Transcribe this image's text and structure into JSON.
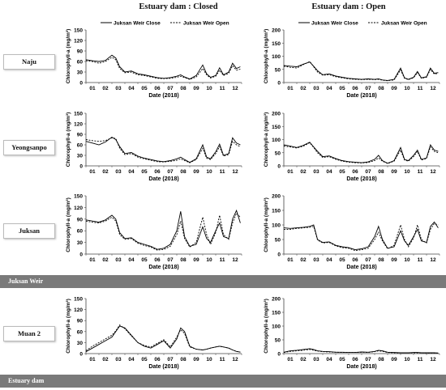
{
  "columns": {
    "closed": "Estuary dam : Closed",
    "open": "Estuary dam : Open"
  },
  "rows": {
    "naju": "Naju",
    "yeongsanpo": "Yeongsanpo",
    "juksan": "Juksan",
    "muan": "Muan 2"
  },
  "bands": {
    "juksan_weir": "Juksan Weir",
    "estuary_dam": "Estuary dam"
  },
  "colors": {
    "close_line": "#000000",
    "open_line": "#000000",
    "band": "#7a7a7a"
  },
  "chart_data": [
    {
      "id": "naju-closed",
      "type": "line",
      "xlabel": "Date (2018)",
      "ylabel": "Chlorophyll-a (mg/m³)",
      "ylim": [
        0,
        150
      ],
      "yticks": [
        0,
        30,
        60,
        90,
        120,
        150
      ],
      "xticks": [
        "01",
        "02",
        "03",
        "04",
        "05",
        "06",
        "07",
        "08",
        "09",
        "10",
        "11",
        "12"
      ],
      "legend": [
        "Juksan Weir Close",
        "Juksan Weir Open"
      ],
      "x": [
        1,
        1.5,
        2,
        2.5,
        3,
        3.3,
        3.6,
        4,
        4.5,
        5,
        5.5,
        6,
        6.5,
        7,
        7.5,
        8,
        8.3,
        8.6,
        9,
        9.5,
        10,
        10.3,
        10.6,
        11,
        11.3,
        11.6,
        12,
        12.3,
        12.6,
        12.9
      ],
      "series": [
        {
          "name": "Juksan Weir Close",
          "values": [
            65,
            62,
            60,
            63,
            78,
            70,
            45,
            30,
            33,
            25,
            22,
            18,
            14,
            12,
            14,
            18,
            22,
            16,
            10,
            20,
            50,
            25,
            15,
            20,
            42,
            22,
            30,
            55,
            40,
            45
          ]
        },
        {
          "name": "Juksan Weir Open",
          "values": [
            62,
            60,
            55,
            60,
            72,
            65,
            40,
            28,
            30,
            22,
            20,
            16,
            12,
            11,
            12,
            15,
            18,
            14,
            9,
            16,
            40,
            22,
            13,
            18,
            35,
            20,
            26,
            48,
            35,
            38
          ]
        }
      ]
    },
    {
      "id": "naju-open",
      "type": "line",
      "xlabel": "Date (2018)",
      "ylabel": "Chlorophyll-a (mg/m³)",
      "ylim": [
        0,
        200
      ],
      "yticks": [
        0,
        50,
        100,
        150,
        200
      ],
      "xticks": [
        "01",
        "02",
        "03",
        "04",
        "05",
        "06",
        "07",
        "08",
        "09",
        "10",
        "11",
        "12"
      ],
      "legend": [
        "Juksan Weir Close",
        "Juksan Weir Open"
      ],
      "x": [
        1,
        1.5,
        2,
        2.5,
        3,
        3.3,
        3.6,
        4,
        4.5,
        5,
        5.5,
        6,
        6.5,
        7,
        7.5,
        8,
        8.3,
        8.6,
        9,
        9.5,
        10,
        10.3,
        10.6,
        11,
        11.3,
        11.6,
        12,
        12.3,
        12.6,
        12.9
      ],
      "series": [
        {
          "name": "Juksan Weir Close",
          "values": [
            65,
            62,
            60,
            70,
            78,
            62,
            45,
            30,
            33,
            25,
            20,
            16,
            14,
            12,
            14,
            12,
            14,
            10,
            8,
            12,
            55,
            18,
            12,
            20,
            42,
            18,
            22,
            55,
            35,
            38
          ]
        },
        {
          "name": "Juksan Weir Open",
          "values": [
            62,
            58,
            55,
            68,
            80,
            60,
            40,
            28,
            30,
            22,
            18,
            14,
            12,
            11,
            12,
            11,
            12,
            9,
            7,
            10,
            48,
            16,
            11,
            18,
            38,
            16,
            20,
            50,
            32,
            35
          ]
        }
      ]
    },
    {
      "id": "yeongsanpo-closed",
      "type": "line",
      "xlabel": "Date (2018)",
      "ylabel": "Chlorophyll-a (mg/m³)",
      "ylim": [
        0,
        150
      ],
      "yticks": [
        0,
        30,
        60,
        90,
        120,
        150
      ],
      "xticks": [
        "01",
        "02",
        "03",
        "04",
        "05",
        "06",
        "07",
        "08",
        "09",
        "10",
        "11",
        "12"
      ],
      "legend": [
        "Juksan Weir Close",
        "Juksan Weir Open"
      ],
      "x": [
        1,
        1.5,
        2,
        2.5,
        3,
        3.3,
        3.6,
        4,
        4.5,
        5,
        5.5,
        6,
        6.5,
        7,
        7.5,
        8,
        8.3,
        8.6,
        9,
        9.5,
        10,
        10.3,
        10.6,
        11,
        11.3,
        11.6,
        12,
        12.3,
        12.6,
        12.9
      ],
      "series": [
        {
          "name": "Juksan Weir Close",
          "values": [
            70,
            65,
            60,
            68,
            82,
            75,
            55,
            35,
            38,
            28,
            22,
            18,
            14,
            12,
            15,
            20,
            25,
            18,
            10,
            20,
            60,
            25,
            20,
            40,
            62,
            30,
            35,
            80,
            65,
            60
          ]
        },
        {
          "name": "Juksan Weir Open",
          "values": [
            75,
            72,
            70,
            72,
            80,
            78,
            50,
            32,
            35,
            25,
            20,
            16,
            12,
            11,
            13,
            16,
            20,
            15,
            9,
            18,
            50,
            22,
            18,
            35,
            55,
            28,
            32,
            70,
            60,
            55
          ]
        }
      ]
    },
    {
      "id": "yeongsanpo-open",
      "type": "line",
      "xlabel": "Date (2018)",
      "ylabel": "Chlorophyll-a (mg/m³)",
      "ylim": [
        0,
        200
      ],
      "yticks": [
        0,
        50,
        100,
        150,
        200
      ],
      "xticks": [
        "01",
        "02",
        "03",
        "04",
        "05",
        "06",
        "07",
        "08",
        "09",
        "10",
        "11",
        "12"
      ],
      "legend": [
        "Juksan Weir Close",
        "Juksan Weir Open"
      ],
      "x": [
        1,
        1.5,
        2,
        2.5,
        3,
        3.3,
        3.6,
        4,
        4.5,
        5,
        5.5,
        6,
        6.5,
        7,
        7.5,
        8,
        8.3,
        8.6,
        9,
        9.5,
        10,
        10.3,
        10.6,
        11,
        11.3,
        11.6,
        12,
        12.3,
        12.6,
        12.9
      ],
      "series": [
        {
          "name": "Juksan Weir Close",
          "values": [
            80,
            75,
            70,
            78,
            90,
            72,
            55,
            35,
            38,
            28,
            20,
            16,
            14,
            12,
            15,
            25,
            40,
            20,
            10,
            20,
            70,
            25,
            20,
            40,
            60,
            25,
            30,
            80,
            60,
            55
          ]
        },
        {
          "name": "Juksan Weir Open",
          "values": [
            75,
            72,
            68,
            75,
            88,
            70,
            50,
            32,
            35,
            25,
            18,
            14,
            12,
            11,
            13,
            20,
            30,
            18,
            9,
            18,
            60,
            22,
            18,
            35,
            55,
            22,
            28,
            72,
            55,
            50
          ]
        }
      ]
    },
    {
      "id": "juksan-closed",
      "type": "line",
      "xlabel": "Date (2018)",
      "ylabel": "Chlorophyll-a (mg/m³)",
      "ylim": [
        0,
        150
      ],
      "yticks": [
        0,
        30,
        60,
        90,
        120,
        150
      ],
      "xticks": [
        "01",
        "02",
        "03",
        "04",
        "05",
        "06",
        "07",
        "08",
        "09",
        "10",
        "11",
        "12"
      ],
      "legend": [
        "Juksan Weir Close",
        "Juksan Weir Open"
      ],
      "x": [
        1,
        1.5,
        2,
        2.5,
        3,
        3.3,
        3.6,
        4,
        4.5,
        5,
        5.5,
        6,
        6.5,
        7,
        7.5,
        8,
        8.3,
        8.6,
        9,
        9.5,
        10,
        10.3,
        10.6,
        11,
        11.3,
        11.6,
        12,
        12.3,
        12.6,
        12.9
      ],
      "series": [
        {
          "name": "Juksan Weir Close",
          "values": [
            88,
            85,
            82,
            88,
            100,
            90,
            55,
            40,
            42,
            30,
            25,
            20,
            12,
            15,
            25,
            60,
            110,
            45,
            20,
            25,
            70,
            40,
            30,
            60,
            80,
            45,
            40,
            90,
            112,
            80
          ]
        },
        {
          "name": "Juksan Weir Open",
          "values": [
            85,
            82,
            80,
            85,
            95,
            85,
            50,
            38,
            40,
            28,
            22,
            18,
            10,
            12,
            20,
            50,
            85,
            40,
            18,
            30,
            95,
            50,
            25,
            55,
            100,
            50,
            38,
            80,
            105,
            95
          ]
        }
      ]
    },
    {
      "id": "juksan-open",
      "type": "line",
      "xlabel": "Date (2018)",
      "ylabel": "Chlorophyll-a (mg/m³)",
      "ylim": [
        0,
        200
      ],
      "yticks": [
        0,
        50,
        100,
        150,
        200
      ],
      "xticks": [
        "01",
        "02",
        "03",
        "04",
        "05",
        "06",
        "07",
        "08",
        "09",
        "10",
        "11",
        "12"
      ],
      "legend": [
        "Juksan Weir Close",
        "Juksan Weir Open"
      ],
      "x": [
        1,
        1.5,
        2,
        2.5,
        3,
        3.3,
        3.6,
        4,
        4.5,
        5,
        5.5,
        6,
        6.5,
        7,
        7.5,
        8,
        8.3,
        8.6,
        9,
        9.5,
        10,
        10.3,
        10.6,
        11,
        11.3,
        11.6,
        12,
        12.3,
        12.6,
        12.9
      ],
      "series": [
        {
          "name": "Juksan Weir Close",
          "values": [
            90,
            88,
            90,
            92,
            95,
            100,
            50,
            40,
            42,
            30,
            25,
            22,
            15,
            18,
            25,
            60,
            95,
            50,
            20,
            25,
            80,
            45,
            30,
            60,
            85,
            45,
            40,
            95,
            110,
            90
          ]
        },
        {
          "name": "Juksan Weir Open",
          "values": [
            85,
            85,
            88,
            90,
            92,
            95,
            48,
            38,
            40,
            28,
            22,
            20,
            12,
            15,
            20,
            50,
            75,
            45,
            18,
            30,
            100,
            50,
            25,
            55,
            100,
            50,
            38,
            85,
            105,
            100
          ]
        }
      ]
    },
    {
      "id": "muan-closed",
      "type": "line",
      "xlabel": "Date (2018)",
      "ylabel": "Chlorophyll-a (mg/m³)",
      "ylim": [
        0,
        150
      ],
      "yticks": [
        0,
        30,
        60,
        90,
        120,
        150
      ],
      "xticks": [
        "01",
        "02",
        "03",
        "04",
        "05",
        "06",
        "07",
        "08",
        "09",
        "10",
        "11",
        "12"
      ],
      "legend": [
        "Juksan Weir Close",
        "Juksan Weir Open"
      ],
      "x": [
        1,
        1.5,
        2,
        2.5,
        3,
        3.3,
        3.6,
        4,
        4.5,
        5,
        5.5,
        6,
        6.5,
        7,
        7.5,
        8,
        8.3,
        8.6,
        9,
        9.5,
        10,
        10.3,
        10.6,
        11,
        11.3,
        11.6,
        12,
        12.3,
        12.6,
        12.9
      ],
      "series": [
        {
          "name": "Juksan Weir Close",
          "values": [
            5,
            15,
            25,
            35,
            45,
            60,
            75,
            70,
            50,
            30,
            20,
            15,
            25,
            35,
            15,
            40,
            70,
            60,
            20,
            12,
            10,
            12,
            15,
            18,
            20,
            18,
            15,
            10,
            6,
            4
          ]
        },
        {
          "name": "Juksan Weir Open",
          "values": [
            8,
            20,
            30,
            40,
            50,
            62,
            78,
            68,
            48,
            30,
            22,
            18,
            28,
            38,
            18,
            45,
            65,
            55,
            18,
            12,
            10,
            12,
            15,
            18,
            20,
            18,
            15,
            10,
            6,
            4
          ]
        }
      ]
    },
    {
      "id": "muan-open",
      "type": "line",
      "xlabel": "Date (2018)",
      "ylabel": "Chlorophyll-a (mg/m³)",
      "ylim": [
        0,
        200
      ],
      "yticks": [
        0,
        50,
        100,
        150,
        200
      ],
      "xticks": [
        "01",
        "02",
        "03",
        "04",
        "05",
        "06",
        "07",
        "08",
        "09",
        "10",
        "11",
        "12"
      ],
      "legend": [
        "Juksan Weir Close",
        "Juksan Weir Open"
      ],
      "x": [
        1,
        1.5,
        2,
        2.5,
        3,
        3.3,
        3.6,
        4,
        4.5,
        5,
        5.5,
        6,
        6.5,
        7,
        7.5,
        8,
        8.3,
        8.6,
        9,
        9.5,
        10,
        10.3,
        10.6,
        11,
        11.3,
        11.6,
        12,
        12.3,
        12.6,
        12.9
      ],
      "series": [
        {
          "name": "Juksan Weir Close",
          "values": [
            5,
            10,
            12,
            15,
            18,
            15,
            10,
            8,
            7,
            5,
            5,
            4,
            4,
            6,
            5,
            8,
            12,
            10,
            5,
            4,
            3,
            3,
            3,
            4,
            4,
            3,
            3,
            3,
            3,
            2
          ]
        },
        {
          "name": "Juksan Weir Open",
          "values": [
            4,
            8,
            10,
            12,
            15,
            12,
            9,
            7,
            6,
            5,
            4,
            4,
            4,
            5,
            4,
            7,
            10,
            8,
            4,
            3,
            3,
            3,
            3,
            3,
            3,
            3,
            2,
            2,
            2,
            2
          ]
        }
      ]
    }
  ]
}
